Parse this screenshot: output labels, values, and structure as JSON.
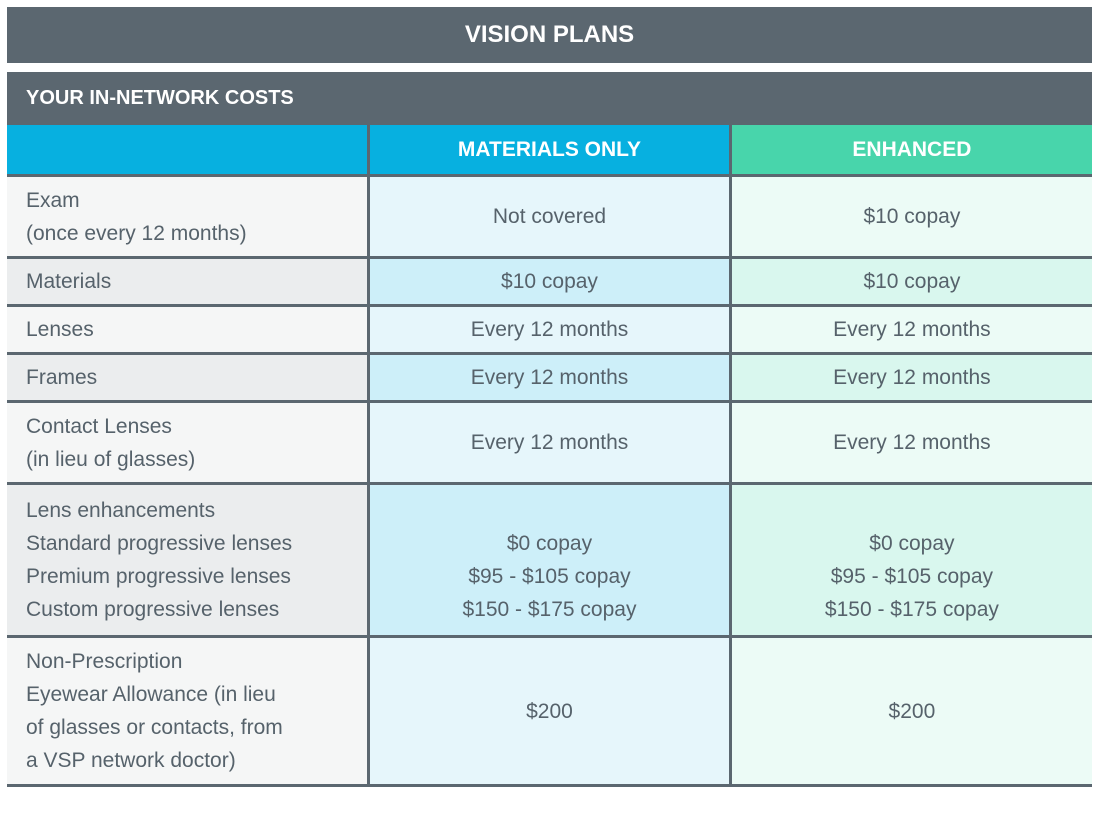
{
  "title": "VISION PLANS",
  "subtitle": "YOUR IN-NETWORK COSTS",
  "columns": [
    "",
    "MATERIALS ONLY",
    "ENHANCED"
  ],
  "colors": {
    "header": "#5b6770",
    "materials": "#07b0e0",
    "enhanced": "#48d5ab"
  },
  "rows": [
    {
      "label": [
        "Exam",
        "(once every 12 months)"
      ],
      "materials": [
        "Not covered"
      ],
      "enhanced": [
        "$10 copay"
      ]
    },
    {
      "label": [
        "Materials"
      ],
      "materials": [
        "$10 copay"
      ],
      "enhanced": [
        "$10 copay"
      ]
    },
    {
      "label": [
        "Lenses"
      ],
      "materials": [
        "Every 12 months"
      ],
      "enhanced": [
        "Every 12 months"
      ]
    },
    {
      "label": [
        "Frames"
      ],
      "materials": [
        "Every 12 months"
      ],
      "enhanced": [
        "Every 12 months"
      ]
    },
    {
      "label": [
        "Contact Lenses",
        "(in lieu of glasses)"
      ],
      "materials": [
        "Every 12 months"
      ],
      "enhanced": [
        "Every 12 months"
      ]
    },
    {
      "label": [
        "Lens enhancements",
        "Standard progressive lenses",
        "Premium progressive lenses",
        "Custom progressive lenses"
      ],
      "materials": [
        "",
        "$0 copay",
        "$95 - $105 copay",
        "$150 - $175 copay"
      ],
      "enhanced": [
        "",
        "$0 copay",
        "$95 - $105 copay",
        "$150 - $175 copay"
      ]
    },
    {
      "label": [
        "Non-Prescription",
        "Eyewear Allowance (in lieu",
        "of glasses or contacts, from",
        "a VSP network doctor)"
      ],
      "materials": [
        "$200"
      ],
      "enhanced": [
        "$200"
      ]
    }
  ]
}
